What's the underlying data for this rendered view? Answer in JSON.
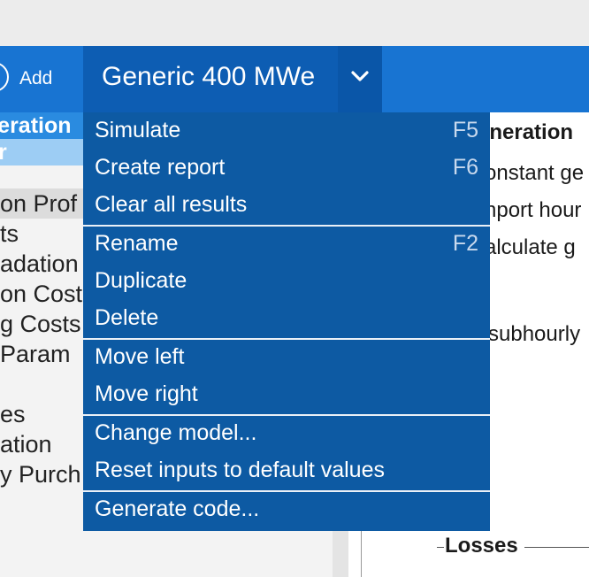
{
  "toolbar": {
    "add_label": "Add",
    "add_icon": "add-circle-icon",
    "case_title": "Generic 400 MWe",
    "dropdown_icon": "chevron-down-icon",
    "accent": "#1874d2"
  },
  "sidebar": {
    "header": "eneration",
    "subheader": "r",
    "items": [
      "on Prof",
      "ts",
      "adation",
      "on Cost",
      "g Costs",
      " Param",
      "",
      "es",
      "ation",
      "y Purch"
    ]
  },
  "main": {
    "section_title": "eneration",
    "line1": "onstant ge",
    "line2": "nport hour",
    "line3": "alculate g",
    "line4": "subhourly",
    "losses": "Losses"
  },
  "menu": {
    "groups": [
      [
        {
          "label": "Simulate",
          "shortcut": "F5"
        },
        {
          "label": "Create report",
          "shortcut": "F6"
        },
        {
          "label": "Clear all results",
          "shortcut": ""
        }
      ],
      [
        {
          "label": "Rename",
          "shortcut": "F2"
        },
        {
          "label": "Duplicate",
          "shortcut": ""
        },
        {
          "label": "Delete",
          "shortcut": ""
        }
      ],
      [
        {
          "label": "Move left",
          "shortcut": ""
        },
        {
          "label": "Move right",
          "shortcut": ""
        }
      ],
      [
        {
          "label": "Change model...",
          "shortcut": ""
        },
        {
          "label": "Reset inputs to default values",
          "shortcut": ""
        }
      ],
      [
        {
          "label": "Generate code...",
          "shortcut": ""
        }
      ]
    ]
  }
}
